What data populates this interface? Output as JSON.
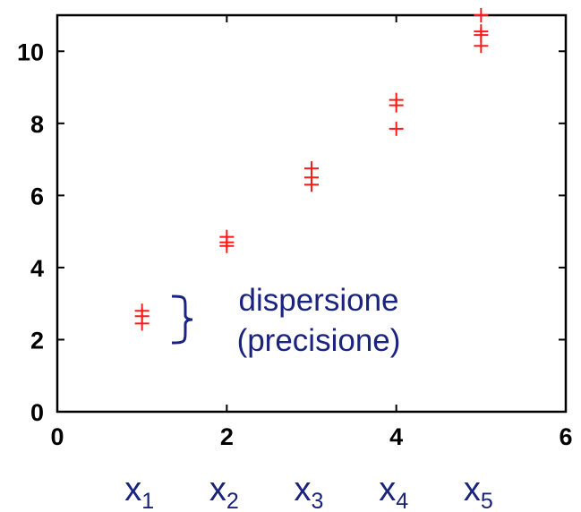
{
  "chart_data": {
    "type": "scatter",
    "xlim": [
      0,
      6
    ],
    "ylim": [
      0,
      11
    ],
    "xticks": [
      0,
      2,
      4,
      6
    ],
    "yticks": [
      0,
      2,
      4,
      6,
      8,
      10
    ],
    "xtick_labels": [
      "0",
      "2",
      "4",
      "6"
    ],
    "ytick_labels": [
      "0",
      "2",
      "4",
      "6",
      "8",
      "10"
    ],
    "grid": false,
    "marker": "plus",
    "marker_color": "#ff1a1a",
    "points": [
      {
        "x": 1,
        "y": 2.8
      },
      {
        "x": 1,
        "y": 2.65
      },
      {
        "x": 1,
        "y": 2.45
      },
      {
        "x": 2,
        "y": 4.85
      },
      {
        "x": 2,
        "y": 4.7
      },
      {
        "x": 2,
        "y": 4.6
      },
      {
        "x": 3,
        "y": 6.75
      },
      {
        "x": 3,
        "y": 6.5
      },
      {
        "x": 3,
        "y": 6.3
      },
      {
        "x": 4,
        "y": 8.65
      },
      {
        "x": 4,
        "y": 8.5
      },
      {
        "x": 4,
        "y": 7.85
      },
      {
        "x": 5,
        "y": 11.0
      },
      {
        "x": 5,
        "y": 10.55
      },
      {
        "x": 5,
        "y": 10.45
      },
      {
        "x": 5,
        "y": 10.15
      }
    ],
    "annotation": {
      "line1": "dispersione",
      "line2": "(precisione)",
      "color": "#1a237e"
    },
    "categories": [
      {
        "symbol": "x",
        "sub": "1",
        "x": 1
      },
      {
        "symbol": "x",
        "sub": "2",
        "x": 2
      },
      {
        "symbol": "x",
        "sub": "3",
        "x": 3
      },
      {
        "symbol": "x",
        "sub": "4",
        "x": 4
      },
      {
        "symbol": "x",
        "sub": "5",
        "x": 5
      }
    ]
  }
}
